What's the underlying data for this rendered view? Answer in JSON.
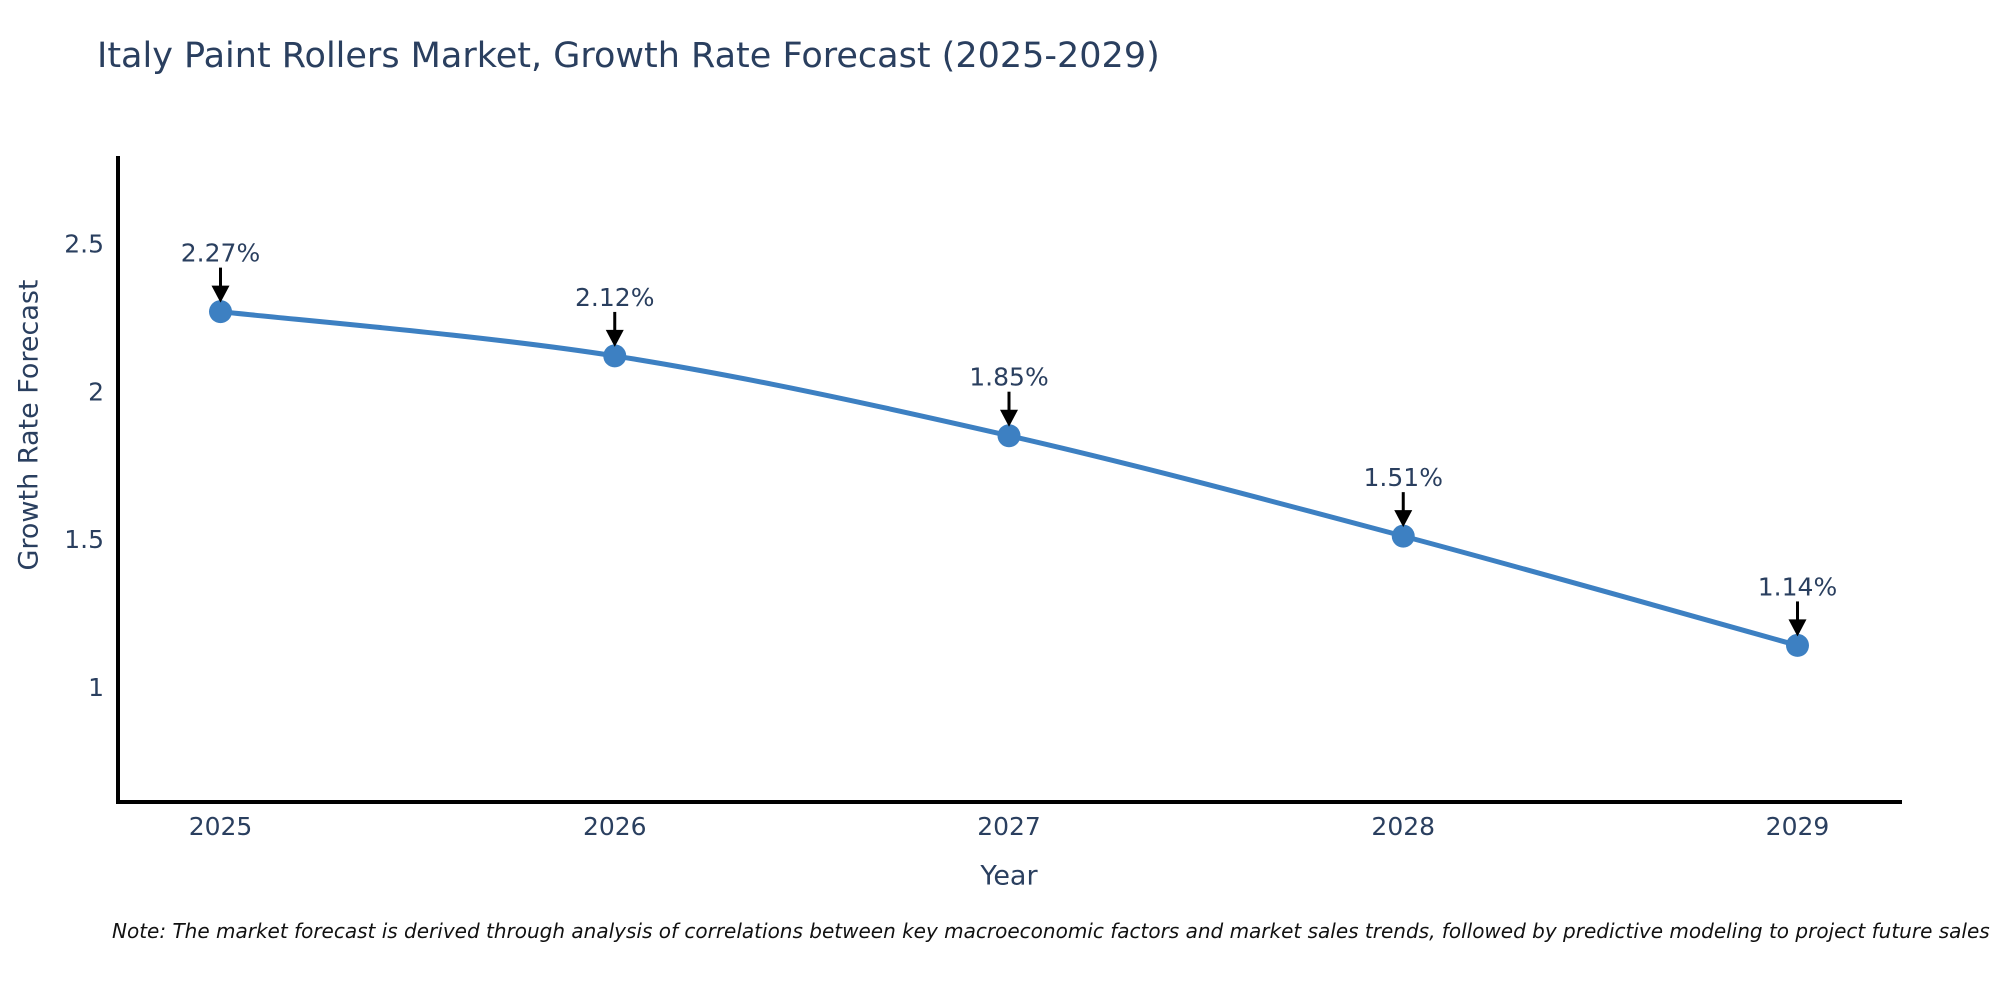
{
  "page": {
    "background_color": "#ffffff"
  },
  "chart_data": {
    "type": "line",
    "title": "Italy Paint Rollers Market, Growth Rate Forecast (2025-2029)",
    "xlabel": "Year",
    "ylabel": "Growth Rate Forecast",
    "x": [
      2025,
      2026,
      2027,
      2028,
      2029
    ],
    "x_tick_labels": [
      "2025",
      "2026",
      "2027",
      "2028",
      "2029"
    ],
    "values": [
      2.27,
      2.12,
      1.85,
      1.51,
      1.14
    ],
    "point_labels": [
      "2.27%",
      "2.12%",
      "1.85%",
      "1.51%",
      "1.14%"
    ],
    "y_ticks": [
      1,
      1.5,
      2,
      2.5
    ],
    "y_tick_labels": [
      "1",
      "1.5",
      "2",
      "2.5"
    ],
    "xlim": [
      2024.74,
      2029.26
    ],
    "ylim": [
      0.61,
      2.79
    ],
    "grid": false,
    "legend": "none",
    "line_color": "#3d80c2",
    "marker_color": "#3d80c2",
    "annotation_arrow_color": "#000000",
    "text_color": "#2a3f5f",
    "axis_color": "#000000"
  },
  "note": {
    "text": "Note: The market forecast is derived through analysis of correlations between key macroeconomic factors and market sales trends, followed by predictive modeling to project future sales"
  }
}
